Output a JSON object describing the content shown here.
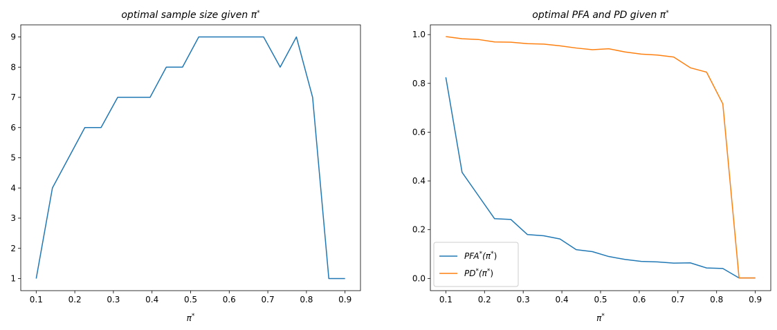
{
  "chart_data": [
    {
      "type": "line",
      "title": "optimal sample size given π*",
      "xlabel": "π*",
      "ylabel": "",
      "xlim": [
        0.06,
        0.94
      ],
      "ylim": [
        0.6,
        9.4
      ],
      "xticks": [
        0.1,
        0.2,
        0.3,
        0.4,
        0.5,
        0.6,
        0.7,
        0.8,
        0.9
      ],
      "yticks": [
        1,
        2,
        3,
        4,
        5,
        6,
        7,
        8,
        9
      ],
      "grid": false,
      "series": [
        {
          "color": "#1f77b4",
          "x": [
            0.1,
            0.142,
            0.184,
            0.226,
            0.268,
            0.311,
            0.353,
            0.395,
            0.437,
            0.479,
            0.521,
            0.563,
            0.605,
            0.647,
            0.689,
            0.732,
            0.774,
            0.816,
            0.858,
            0.9
          ],
          "y": [
            1,
            4,
            5,
            6,
            6,
            7,
            7,
            7,
            8,
            8,
            9,
            9,
            9,
            9,
            9,
            8,
            9,
            7,
            1,
            1
          ]
        }
      ]
    },
    {
      "type": "line",
      "title": "optimal PFA and PD given π*",
      "xlabel": "π*",
      "ylabel": "",
      "xlim": [
        0.06,
        0.94
      ],
      "ylim": [
        -0.05,
        1.04
      ],
      "xticks": [
        0.1,
        0.2,
        0.3,
        0.4,
        0.5,
        0.6,
        0.7,
        0.8,
        0.9
      ],
      "yticks": [
        0.0,
        0.2,
        0.4,
        0.6,
        0.8,
        1.0
      ],
      "grid": false,
      "legend_position": "lower-left",
      "series": [
        {
          "name": "PFA*(π*)",
          "color": "#1f77b4",
          "x": [
            0.1,
            0.142,
            0.184,
            0.226,
            0.268,
            0.311,
            0.353,
            0.395,
            0.437,
            0.479,
            0.521,
            0.563,
            0.605,
            0.647,
            0.689,
            0.732,
            0.774,
            0.816,
            0.858,
            0.9
          ],
          "y": [
            0.825,
            0.435,
            0.34,
            0.245,
            0.242,
            0.18,
            0.175,
            0.162,
            0.118,
            0.11,
            0.09,
            0.078,
            0.07,
            0.068,
            0.063,
            0.064,
            0.043,
            0.041,
            0.002,
            0.002
          ]
        },
        {
          "name": "PD*(π*)",
          "color": "#ff7f0e",
          "x": [
            0.1,
            0.142,
            0.184,
            0.226,
            0.268,
            0.311,
            0.353,
            0.395,
            0.437,
            0.479,
            0.521,
            0.563,
            0.605,
            0.647,
            0.689,
            0.732,
            0.774,
            0.816,
            0.858,
            0.9
          ],
          "y": [
            0.992,
            0.983,
            0.98,
            0.97,
            0.969,
            0.963,
            0.961,
            0.954,
            0.945,
            0.938,
            0.942,
            0.929,
            0.92,
            0.916,
            0.908,
            0.864,
            0.846,
            0.716,
            0.002,
            0.002
          ]
        }
      ]
    }
  ]
}
